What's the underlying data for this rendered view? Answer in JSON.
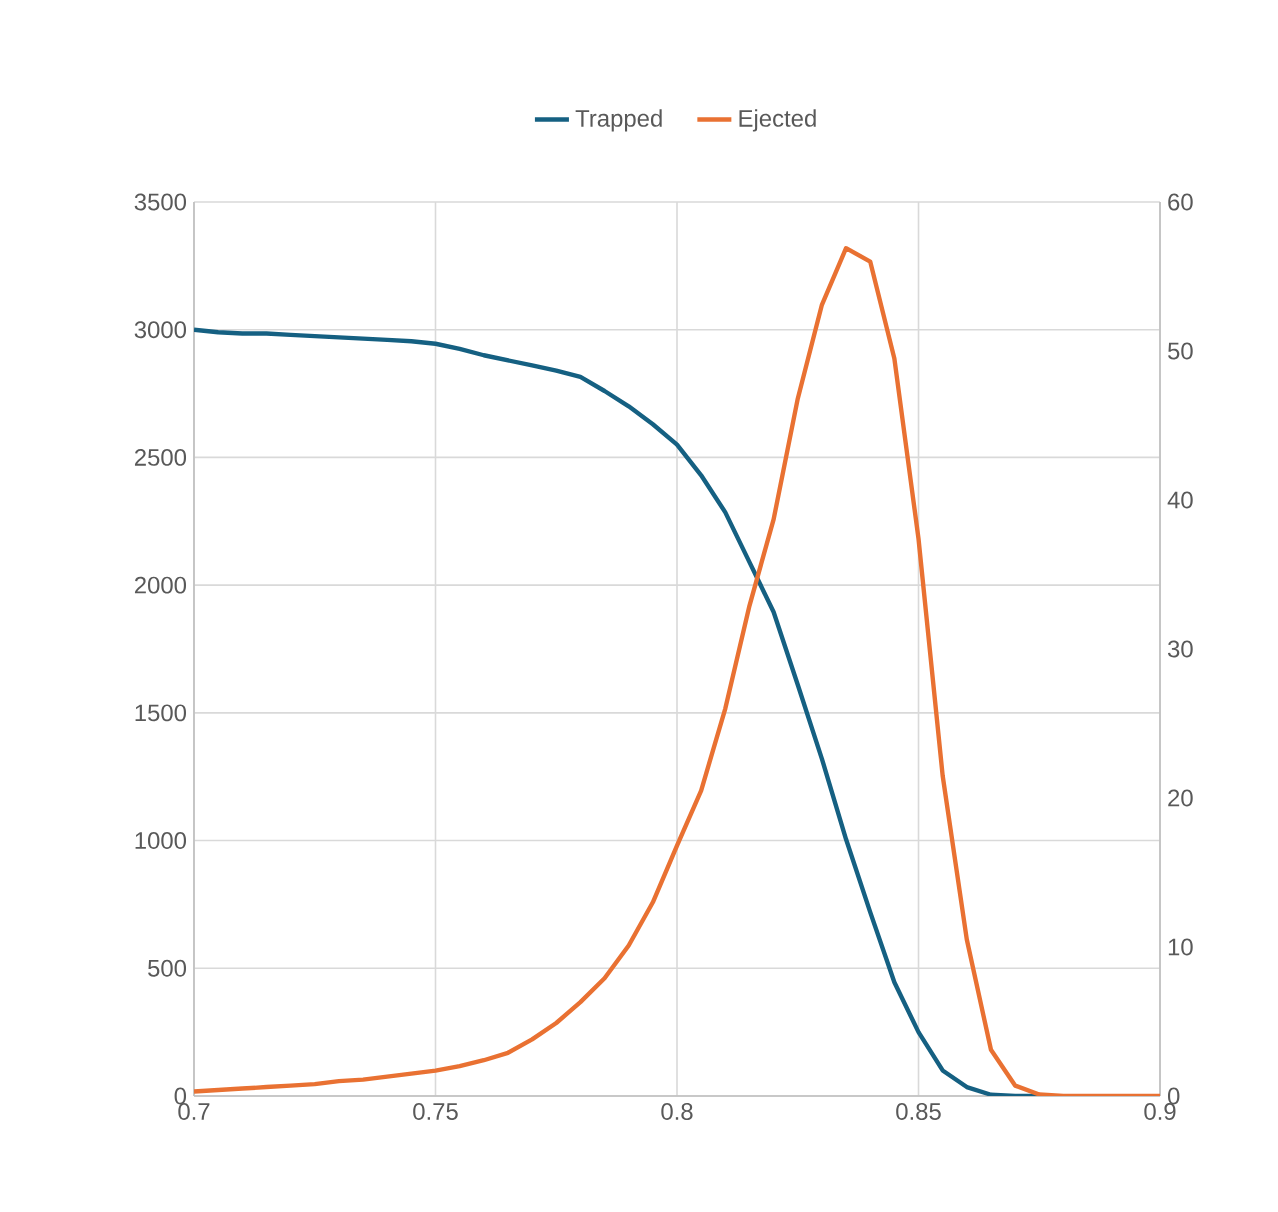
{
  "chart_data": {
    "type": "line",
    "x": [
      0.7,
      0.705,
      0.71,
      0.715,
      0.72,
      0.725,
      0.73,
      0.735,
      0.74,
      0.745,
      0.75,
      0.755,
      0.76,
      0.765,
      0.77,
      0.775,
      0.78,
      0.785,
      0.79,
      0.795,
      0.8,
      0.805,
      0.81,
      0.815,
      0.82,
      0.825,
      0.83,
      0.835,
      0.84,
      0.845,
      0.85,
      0.855,
      0.86,
      0.865,
      0.87,
      0.875,
      0.88,
      0.885,
      0.89,
      0.895,
      0.9
    ],
    "series": [
      {
        "name": "Trapped",
        "color": "#156082",
        "values": [
          3000,
          2990,
          2985,
          2985,
          2980,
          2975,
          2970,
          2965,
          2960,
          2955,
          2945,
          2925,
          2900,
          2880,
          2860,
          2840,
          2815,
          2760,
          2700,
          2630,
          2550,
          2430,
          2285,
          2090,
          1895,
          1610,
          1320,
          1005,
          720,
          445,
          250,
          100,
          35,
          5,
          0,
          0,
          null,
          null,
          null,
          null,
          null
        ]
      },
      {
        "name": "Ejected",
        "color": "#e97132",
        "axis": "y2",
        "values": [
          0.3,
          0.4,
          0.5,
          0.6,
          0.7,
          0.8,
          1.0,
          1.1,
          1.3,
          1.5,
          1.7,
          2.0,
          2.4,
          2.9,
          3.8,
          4.9,
          6.3,
          7.9,
          10.1,
          13.0,
          16.8,
          20.5,
          26.0,
          32.9,
          38.7,
          46.8,
          53.1,
          56.9,
          56.0,
          49.5,
          37.4,
          21.5,
          10.5,
          3.1,
          0.7,
          0.1,
          0,
          0,
          0,
          0,
          0
        ]
      }
    ],
    "xlim": [
      0.7,
      0.9
    ],
    "xticks": [
      0.7,
      0.75,
      0.8,
      0.85,
      0.9
    ],
    "ylim": [
      0,
      3500
    ],
    "yticks": [
      0,
      500,
      1000,
      1500,
      2000,
      2500,
      3000,
      3500
    ],
    "y2lim": [
      0,
      60
    ],
    "y2ticks": [
      0,
      10,
      20,
      30,
      40,
      50,
      60
    ],
    "grid": true,
    "legend": "top"
  }
}
